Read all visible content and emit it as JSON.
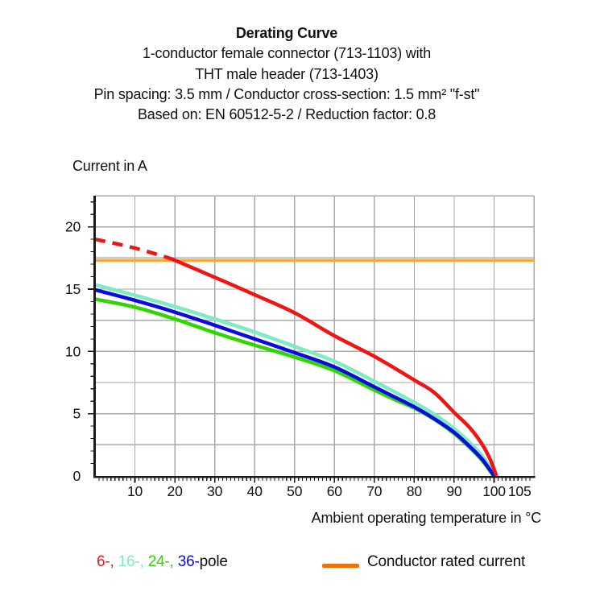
{
  "header": {
    "title": "Derating Curve",
    "subtitle_lines": [
      "1-conductor female connector (713-1103) with",
      "THT male header (713-1403)",
      "Pin spacing: 3.5 mm / Conductor cross-section: 1.5 mm² \"f-st\"",
      "Based on: EN 60512-5-2 / Reduction factor: 0.8"
    ]
  },
  "chart_data": {
    "type": "line",
    "title": "Derating Curve",
    "ylabel": "Current in A",
    "xlabel": "Ambient operating temperature in °C",
    "xlim": [
      0,
      110
    ],
    "ylim": [
      0,
      22.5
    ],
    "grid": {
      "x_step": 10,
      "y_step": 2.5,
      "color": "#a9a9a9",
      "minor_tick_step_x": 1,
      "minor_tick_step_y": 1
    },
    "x_tick_labels": [
      {
        "text": "10",
        "at": 10
      },
      {
        "text": "20",
        "at": 20
      },
      {
        "text": "30",
        "at": 30
      },
      {
        "text": "40",
        "at": 40
      },
      {
        "text": "50",
        "at": 50
      },
      {
        "text": "60",
        "at": 60
      },
      {
        "text": "70",
        "at": 70
      },
      {
        "text": "80",
        "at": 80
      },
      {
        "text": "90",
        "at": 90
      },
      {
        "text": "100",
        "at": 100
      },
      {
        "text": "105",
        "at": 106.4
      }
    ],
    "y_tick_labels": [
      {
        "text": "0",
        "at": 0
      },
      {
        "text": "5",
        "at": 5
      },
      {
        "text": "10",
        "at": 10
      },
      {
        "text": "15",
        "at": 15
      },
      {
        "text": "20",
        "at": 20
      }
    ],
    "reference_line": {
      "label": "Conductor rated current",
      "value": 17.3,
      "color": "#f9a42b"
    },
    "series": [
      {
        "name": "6-pole",
        "color": "#f01414",
        "z_index": 4,
        "segments": [
          {
            "dash": true,
            "points": [
              [
                0,
                19.0
              ],
              [
                10,
                18.3
              ],
              [
                19,
                17.45
              ]
            ]
          },
          {
            "dash": false,
            "points": [
              [
                19,
                17.45
              ],
              [
                30,
                15.95
              ],
              [
                40,
                14.55
              ],
              [
                50,
                13.1
              ],
              [
                60,
                11.25
              ],
              [
                70,
                9.6
              ],
              [
                80,
                7.7
              ],
              [
                85,
                6.7
              ],
              [
                90,
                5.1
              ],
              [
                94,
                3.85
              ],
              [
                97,
                2.55
              ],
              [
                99,
                1.35
              ],
              [
                100.6,
                0
              ]
            ]
          }
        ]
      },
      {
        "name": "16-pole",
        "color": "#7debc4",
        "z_index": 2,
        "segments": [
          {
            "dash": false,
            "points": [
              [
                0,
                15.35
              ],
              [
                10,
                14.5
              ],
              [
                20,
                13.6
              ],
              [
                30,
                12.6
              ],
              [
                40,
                11.55
              ],
              [
                50,
                10.4
              ],
              [
                60,
                9.2
              ],
              [
                70,
                7.6
              ],
              [
                80,
                5.9
              ],
              [
                85,
                4.95
              ],
              [
                90,
                3.8
              ],
              [
                94,
                2.65
              ],
              [
                97,
                1.6
              ],
              [
                100.4,
                0
              ]
            ]
          }
        ]
      },
      {
        "name": "24-pole",
        "color": "#2fd600",
        "z_index": 1,
        "segments": [
          {
            "dash": false,
            "points": [
              [
                0,
                14.2
              ],
              [
                10,
                13.55
              ],
              [
                20,
                12.6
              ],
              [
                30,
                11.5
              ],
              [
                40,
                10.5
              ],
              [
                50,
                9.55
              ],
              [
                60,
                8.45
              ],
              [
                70,
                6.9
              ],
              [
                75,
                6.15
              ],
              [
                80,
                5.45
              ],
              [
                85,
                4.55
              ],
              [
                90,
                3.4
              ],
              [
                94,
                2.25
              ],
              [
                97,
                1.25
              ],
              [
                99.9,
                0
              ]
            ]
          }
        ]
      },
      {
        "name": "36-pole",
        "color": "#0b0be0",
        "z_index": 3,
        "segments": [
          {
            "dash": false,
            "points": [
              [
                0,
                14.95
              ],
              [
                10,
                14.1
              ],
              [
                20,
                13.15
              ],
              [
                30,
                12.1
              ],
              [
                40,
                11.0
              ],
              [
                50,
                9.9
              ],
              [
                60,
                8.75
              ],
              [
                70,
                7.15
              ],
              [
                75,
                6.35
              ],
              [
                80,
                5.55
              ],
              [
                85,
                4.6
              ],
              [
                90,
                3.5
              ],
              [
                94,
                2.35
              ],
              [
                97,
                1.35
              ],
              [
                100,
                0
              ]
            ]
          }
        ]
      }
    ]
  },
  "legend": {
    "pole_entries": [
      {
        "text": "6-,",
        "color": "#f01414"
      },
      {
        "text": " 16-,",
        "color": "#7debc4"
      },
      {
        "text": " 24-,",
        "color": "#2fd600"
      },
      {
        "text": " 36-",
        "color": "#0b0be0"
      },
      {
        "text": "pole",
        "color": "#111111"
      }
    ],
    "rated_current_label": "Conductor rated current",
    "rated_current_swatch_color": "#ee7203"
  }
}
